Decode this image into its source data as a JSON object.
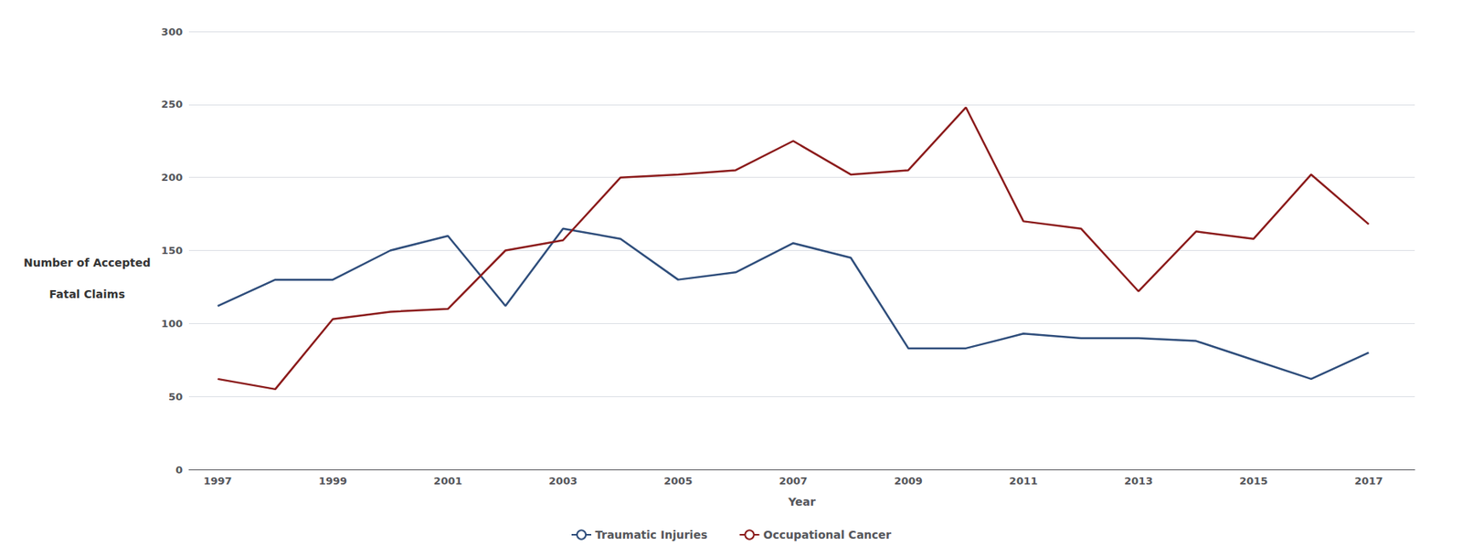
{
  "chart_data": {
    "type": "line",
    "xlabel": "Year",
    "ylabel": "Number of Accepted\nFatal Claims",
    "x": [
      1997,
      1998,
      1999,
      2000,
      2001,
      2002,
      2003,
      2004,
      2005,
      2006,
      2007,
      2008,
      2009,
      2010,
      2011,
      2012,
      2013,
      2014,
      2015,
      2016,
      2017
    ],
    "series": [
      {
        "name": "Traumatic Injuries",
        "color": "#2E4D7B",
        "values": [
          112,
          130,
          130,
          150,
          160,
          112,
          165,
          158,
          130,
          135,
          155,
          145,
          83,
          83,
          93,
          90,
          90,
          88,
          75,
          62,
          80
        ]
      },
      {
        "name": "Occupational Cancer",
        "color": "#8B1A1A",
        "values": [
          62,
          55,
          103,
          108,
          110,
          150,
          157,
          200,
          202,
          205,
          225,
          202,
          205,
          248,
          170,
          165,
          122,
          163,
          158,
          202,
          168
        ]
      }
    ],
    "xlim": [
      1996.5,
      2017.8
    ],
    "xticks": [
      1997,
      1999,
      2001,
      2003,
      2005,
      2007,
      2009,
      2011,
      2013,
      2015,
      2017
    ],
    "ylim": [
      0,
      300
    ],
    "yticks": [
      0,
      50,
      100,
      150,
      200,
      250,
      300
    ],
    "grid": true,
    "legend": "bottom"
  }
}
